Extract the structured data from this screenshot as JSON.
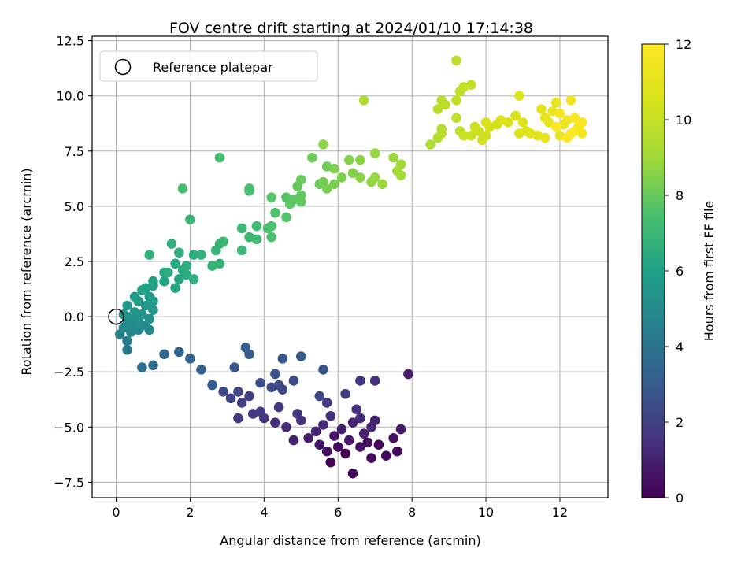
{
  "chart_data": {
    "type": "scatter",
    "title": "FOV centre drift starting at 2024/01/10 17:14:38",
    "xlabel": "Angular distance from reference (arcmin)",
    "ylabel": "Rotation from reference (arcmin)",
    "xlim": [
      -0.65,
      13.3
    ],
    "ylim": [
      -8.2,
      12.7
    ],
    "xticks": [
      0,
      2,
      4,
      6,
      8,
      10,
      12
    ],
    "yticks": [
      -7.5,
      -5.0,
      -2.5,
      0.0,
      2.5,
      5.0,
      7.5,
      10.0,
      12.5
    ],
    "xtick_labels": [
      "0",
      "2",
      "4",
      "6",
      "8",
      "10",
      "12"
    ],
    "ytick_labels": [
      "−7.5",
      "−5.0",
      "−2.5",
      "0.0",
      "2.5",
      "5.0",
      "7.5",
      "10.0",
      "12.5"
    ],
    "grid": true,
    "colormap": "viridis",
    "colorbar": {
      "label": "Hours from first FF file",
      "range": [
        0,
        12
      ],
      "ticks": [
        0,
        2,
        4,
        6,
        8,
        10,
        12
      ],
      "tick_labels": [
        "0",
        "2",
        "4",
        "6",
        "8",
        "10",
        "12"
      ]
    },
    "legend": {
      "position": "top-left",
      "entries": [
        "Reference platepar"
      ]
    },
    "reference_point": {
      "x": 0,
      "y": 0
    },
    "points": [
      [
        6.4,
        -7.1,
        0.2
      ],
      [
        5.8,
        -6.6,
        0.1
      ],
      [
        6.9,
        -6.4,
        0.3
      ],
      [
        7.3,
        -6.3,
        0.2
      ],
      [
        6.2,
        -6.2,
        0.0
      ],
      [
        5.7,
        -6.1,
        0.4
      ],
      [
        7.6,
        -6.1,
        0.2
      ],
      [
        6.6,
        -5.9,
        0.5
      ],
      [
        6.0,
        -5.9,
        0.3
      ],
      [
        7.1,
        -5.8,
        0.1
      ],
      [
        5.5,
        -5.8,
        0.6
      ],
      [
        6.8,
        -5.7,
        0.4
      ],
      [
        6.3,
        -5.6,
        0.7
      ],
      [
        7.5,
        -5.5,
        0.5
      ],
      [
        5.2,
        -5.5,
        0.8
      ],
      [
        5.9,
        -5.4,
        0.6
      ],
      [
        6.7,
        -5.3,
        0.9
      ],
      [
        4.8,
        -5.6,
        1.0
      ],
      [
        7.7,
        -5.1,
        0.8
      ],
      [
        5.4,
        -5.2,
        1.1
      ],
      [
        6.1,
        -5.1,
        0.9
      ],
      [
        6.9,
        -5.0,
        1.2
      ],
      [
        4.6,
        -5.0,
        1.3
      ],
      [
        5.6,
        -4.9,
        1.2
      ],
      [
        6.4,
        -4.8,
        1.1
      ],
      [
        4.3,
        -4.8,
        1.4
      ],
      [
        5.0,
        -4.7,
        1.5
      ],
      [
        7.0,
        -4.7,
        1.0
      ],
      [
        6.6,
        -4.6,
        1.3
      ],
      [
        4.0,
        -4.6,
        1.6
      ],
      [
        5.8,
        -4.5,
        1.4
      ],
      [
        4.9,
        -4.4,
        1.6
      ],
      [
        6.5,
        -4.2,
        1.5
      ],
      [
        3.3,
        -4.6,
        1.8
      ],
      [
        3.7,
        -4.4,
        1.7
      ],
      [
        3.9,
        -4.3,
        1.9
      ],
      [
        4.4,
        -4.1,
        1.8
      ],
      [
        5.7,
        -3.9,
        1.7
      ],
      [
        6.2,
        -3.5,
        1.9
      ],
      [
        3.4,
        -3.9,
        2.0
      ],
      [
        3.1,
        -3.7,
        2.1
      ],
      [
        3.6,
        -3.6,
        2.0
      ],
      [
        5.5,
        -3.6,
        2.2
      ],
      [
        4.5,
        -3.3,
        2.1
      ],
      [
        2.9,
        -3.4,
        2.3
      ],
      [
        3.3,
        -3.4,
        2.2
      ],
      [
        4.2,
        -3.2,
        2.4
      ],
      [
        4.4,
        -3.1,
        2.3
      ],
      [
        3.9,
        -3.0,
        2.5
      ],
      [
        4.8,
        -2.9,
        2.5
      ],
      [
        6.6,
        -2.9,
        1.6
      ],
      [
        7.0,
        -2.9,
        1.4
      ],
      [
        7.9,
        -2.6,
        0.8
      ],
      [
        4.3,
        -2.6,
        2.6
      ],
      [
        5.6,
        -2.4,
        2.7
      ],
      [
        3.2,
        -2.3,
        2.8
      ],
      [
        2.3,
        -2.4,
        3.2
      ],
      [
        4.5,
        -1.9,
        2.9
      ],
      [
        5.0,
        -1.8,
        3.0
      ],
      [
        3.6,
        -1.7,
        3.1
      ],
      [
        2.6,
        -3.1,
        3.0
      ],
      [
        1.7,
        -1.6,
        3.4
      ],
      [
        2.0,
        -1.9,
        3.3
      ],
      [
        1.3,
        -1.7,
        3.5
      ],
      [
        3.5,
        -1.4,
        3.2
      ],
      [
        0.7,
        -2.3,
        3.8
      ],
      [
        1.0,
        -2.2,
        3.7
      ],
      [
        0.3,
        -1.5,
        4.2
      ],
      [
        0.3,
        -1.1,
        4.4
      ],
      [
        0.1,
        -0.8,
        4.6
      ],
      [
        0.4,
        -0.7,
        4.7
      ],
      [
        0.6,
        -0.6,
        4.8
      ],
      [
        0.9,
        -0.6,
        4.9
      ],
      [
        0.8,
        -0.4,
        5.0
      ],
      [
        0.5,
        -0.4,
        5.0
      ],
      [
        0.2,
        -0.5,
        4.9
      ],
      [
        0.3,
        -0.3,
        5.1
      ],
      [
        0.6,
        -0.2,
        5.2
      ],
      [
        0.9,
        -0.1,
        5.3
      ],
      [
        0.4,
        0.0,
        5.3
      ],
      [
        0.7,
        0.1,
        5.4
      ],
      [
        0.2,
        0.1,
        5.4
      ],
      [
        0.5,
        0.2,
        5.5
      ],
      [
        1.0,
        0.3,
        5.5
      ],
      [
        0.8,
        0.5,
        5.6
      ],
      [
        0.3,
        0.5,
        5.6
      ],
      [
        0.6,
        0.7,
        5.7
      ],
      [
        1.0,
        0.7,
        5.7
      ],
      [
        0.5,
        0.9,
        5.8
      ],
      [
        0.9,
        0.9,
        5.8
      ],
      [
        0.7,
        1.2,
        5.9
      ],
      [
        1.0,
        1.4,
        6.0
      ],
      [
        0.8,
        1.3,
        6.0
      ],
      [
        1.3,
        1.6,
        6.1
      ],
      [
        1.0,
        1.6,
        6.1
      ],
      [
        1.3,
        2.0,
        6.2
      ],
      [
        1.6,
        1.3,
        6.2
      ],
      [
        1.7,
        1.7,
        6.3
      ],
      [
        1.6,
        2.4,
        6.3
      ],
      [
        1.9,
        1.9,
        6.4
      ],
      [
        1.8,
        2.1,
        6.4
      ],
      [
        1.9,
        2.3,
        6.5
      ],
      [
        2.1,
        2.8,
        6.5
      ],
      [
        1.4,
        2.0,
        6.5
      ],
      [
        1.5,
        3.3,
        6.6
      ],
      [
        1.7,
        2.9,
        6.6
      ],
      [
        2.3,
        2.8,
        6.7
      ],
      [
        0.9,
        2.8,
        6.7
      ],
      [
        2.1,
        1.7,
        6.7
      ],
      [
        2.6,
        2.3,
        6.8
      ],
      [
        2.8,
        2.4,
        6.8
      ],
      [
        2.7,
        3.0,
        6.9
      ],
      [
        2.8,
        3.3,
        6.9
      ],
      [
        2.9,
        3.4,
        7.0
      ],
      [
        3.4,
        3.0,
        7.0
      ],
      [
        3.6,
        3.6,
        7.1
      ],
      [
        3.4,
        4.0,
        7.1
      ],
      [
        3.8,
        3.5,
        7.2
      ],
      [
        3.8,
        4.1,
        7.2
      ],
      [
        2.0,
        4.4,
        7.0
      ],
      [
        1.8,
        5.8,
        7.3
      ],
      [
        2.8,
        7.2,
        7.3
      ],
      [
        3.6,
        5.7,
        7.4
      ],
      [
        3.6,
        5.8,
        7.4
      ],
      [
        4.1,
        4.0,
        7.5
      ],
      [
        4.2,
        4.1,
        7.5
      ],
      [
        4.2,
        3.6,
        7.5
      ],
      [
        4.3,
        4.7,
        7.6
      ],
      [
        4.6,
        4.5,
        7.6
      ],
      [
        4.2,
        5.4,
        7.7
      ],
      [
        4.6,
        5.4,
        7.7
      ],
      [
        4.8,
        5.3,
        7.8
      ],
      [
        4.7,
        5.1,
        7.8
      ],
      [
        5.0,
        5.2,
        7.9
      ],
      [
        5.0,
        5.5,
        7.9
      ],
      [
        4.9,
        5.9,
        8.0
      ],
      [
        5.0,
        6.2,
        8.0
      ],
      [
        5.3,
        7.2,
        8.1
      ],
      [
        5.5,
        6.0,
        8.1
      ],
      [
        5.6,
        6.1,
        8.2
      ],
      [
        5.7,
        6.8,
        8.2
      ],
      [
        5.7,
        5.8,
        8.3
      ],
      [
        5.9,
        6.0,
        8.3
      ],
      [
        5.9,
        6.7,
        8.4
      ],
      [
        6.1,
        6.3,
        8.4
      ],
      [
        6.3,
        7.1,
        8.5
      ],
      [
        6.4,
        6.5,
        8.5
      ],
      [
        6.6,
        7.1,
        8.6
      ],
      [
        6.6,
        6.3,
        8.6
      ],
      [
        5.6,
        7.8,
        8.7
      ],
      [
        6.9,
        6.1,
        8.7
      ],
      [
        7.0,
        6.3,
        8.8
      ],
      [
        7.0,
        7.4,
        8.8
      ],
      [
        7.2,
        6.0,
        8.9
      ],
      [
        7.5,
        7.2,
        8.9
      ],
      [
        7.7,
        6.9,
        9.0
      ],
      [
        7.7,
        6.4,
        9.0
      ],
      [
        7.6,
        6.6,
        9.1
      ],
      [
        6.7,
        9.8,
        9.3
      ],
      [
        8.5,
        7.8,
        9.4
      ],
      [
        8.7,
        8.1,
        9.5
      ],
      [
        8.8,
        8.5,
        9.5
      ],
      [
        8.7,
        9.4,
        9.6
      ],
      [
        8.8,
        9.8,
        9.6
      ],
      [
        8.9,
        9.6,
        9.7
      ],
      [
        8.8,
        8.3,
        9.7
      ],
      [
        9.2,
        9.0,
        9.8
      ],
      [
        9.3,
        8.4,
        9.8
      ],
      [
        9.2,
        9.8,
        9.9
      ],
      [
        9.3,
        10.2,
        9.9
      ],
      [
        9.4,
        10.4,
        10.0
      ],
      [
        9.6,
        10.5,
        10.0
      ],
      [
        9.2,
        11.6,
        9.8
      ],
      [
        9.4,
        8.2,
        10.1
      ],
      [
        9.6,
        8.2,
        10.1
      ],
      [
        9.8,
        8.4,
        10.2
      ],
      [
        9.7,
        8.6,
        10.2
      ],
      [
        9.9,
        8.0,
        10.3
      ],
      [
        10.0,
        8.2,
        10.3
      ],
      [
        10.1,
        8.6,
        10.4
      ],
      [
        10.3,
        8.7,
        10.4
      ],
      [
        10.0,
        8.8,
        10.5
      ],
      [
        10.4,
        8.9,
        10.5
      ],
      [
        10.6,
        8.8,
        10.6
      ],
      [
        10.8,
        9.1,
        10.6
      ],
      [
        10.9,
        8.3,
        10.7
      ],
      [
        11.1,
        8.4,
        10.7
      ],
      [
        11.0,
        8.8,
        10.8
      ],
      [
        10.9,
        10.0,
        10.8
      ],
      [
        11.2,
        8.3,
        10.9
      ],
      [
        11.4,
        8.2,
        10.9
      ],
      [
        11.5,
        9.4,
        11.0
      ],
      [
        11.6,
        9.0,
        11.0
      ],
      [
        11.7,
        8.8,
        11.1
      ],
      [
        11.6,
        8.1,
        11.1
      ],
      [
        11.9,
        9.7,
        11.2
      ],
      [
        11.8,
        9.3,
        11.2
      ],
      [
        12.0,
        8.2,
        11.3
      ],
      [
        12.1,
        8.7,
        11.3
      ],
      [
        12.2,
        8.9,
        11.4
      ],
      [
        12.3,
        9.8,
        11.4
      ],
      [
        12.4,
        8.4,
        11.5
      ],
      [
        12.5,
        8.6,
        11.6
      ],
      [
        12.6,
        8.3,
        11.7
      ],
      [
        12.2,
        8.1,
        11.8
      ],
      [
        12.4,
        9.0,
        11.8
      ],
      [
        12.6,
        8.8,
        11.9
      ],
      [
        11.9,
        8.6,
        11.9
      ],
      [
        12.3,
        8.3,
        12.0
      ],
      [
        12.0,
        9.2,
        11.6
      ]
    ]
  }
}
